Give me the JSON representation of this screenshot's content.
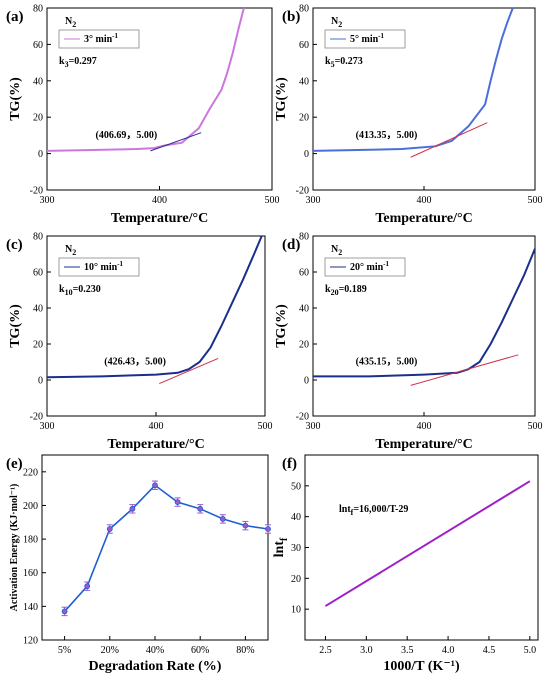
{
  "chart_data": [
    {
      "type": "line",
      "panel_label": "(a)",
      "atmosphere": "N",
      "atmosphere_sub": "2",
      "legend": "3° min",
      "legend_sup": "-1",
      "k_main": "k",
      "k_sub": "3",
      "k_value": "=0.297",
      "annotation": "(406.69，5.00)",
      "xlabel": "Temperature/°C",
      "ylabel": "TG(%)",
      "xlim": [
        300,
        500
      ],
      "ylim": [
        -20,
        80
      ],
      "xticks": [
        300,
        400,
        500
      ],
      "yticks": [
        -20,
        0,
        20,
        40,
        60,
        80
      ],
      "series_color": "#cc77dd",
      "tangent_color": "#2a2a9a",
      "x": [
        300,
        340,
        380,
        395,
        405,
        420,
        435,
        445,
        455,
        460,
        465,
        470,
        475
      ],
      "y": [
        1.5,
        2,
        2.5,
        3,
        4.5,
        6,
        14,
        25,
        35,
        44,
        55,
        68,
        80
      ],
      "tangent": {
        "x": [
          392,
          437
        ],
        "y": [
          1.5,
          11.5
        ]
      }
    },
    {
      "type": "line",
      "panel_label": "(b)",
      "atmosphere": "N",
      "atmosphere_sub": "2",
      "legend": "5° min",
      "legend_sup": "-1",
      "k_main": "k",
      "k_sub": "5",
      "k_value": "=0.273",
      "annotation": "(413.35，5.00)",
      "xlabel": "Temperature/°C",
      "ylabel": "TG(%)",
      "xlim": [
        300,
        500
      ],
      "ylim": [
        -20,
        80
      ],
      "xticks": [
        300,
        400,
        500
      ],
      "yticks": [
        -20,
        0,
        20,
        40,
        60,
        80
      ],
      "series_color": "#4a6fd8",
      "tangent_color": "#d0304a",
      "x": [
        300,
        340,
        380,
        410,
        425,
        440,
        455,
        460,
        465,
        470,
        475,
        480
      ],
      "y": [
        1.5,
        2,
        2.5,
        4,
        7,
        15,
        27,
        40,
        52,
        63,
        72,
        80
      ],
      "tangent": {
        "x": [
          388,
          457
        ],
        "y": [
          -2,
          17
        ]
      }
    },
    {
      "type": "line",
      "panel_label": "(c)",
      "atmosphere": "N",
      "atmosphere_sub": "2",
      "legend": "10° min",
      "legend_sup": "-1",
      "k_main": "k",
      "k_sub": "10",
      "k_value": "=0.230",
      "annotation": "(426.43，5.00)",
      "xlabel": "Temperature/°C",
      "ylabel": "TG(%)",
      "xlim": [
        300,
        500
      ],
      "ylim": [
        -20,
        80
      ],
      "xticks": [
        300,
        400,
        500
      ],
      "yticks": [
        -20,
        0,
        20,
        40,
        60,
        80
      ],
      "series_color": "#1a2f8c",
      "tangent_color": "#d0304a",
      "x": [
        300,
        350,
        400,
        420,
        430,
        440,
        450,
        460,
        470,
        480,
        490,
        497
      ],
      "y": [
        1.5,
        2,
        3,
        4,
        6,
        10,
        18,
        30,
        43,
        56,
        70,
        80
      ],
      "tangent": {
        "x": [
          403,
          457
        ],
        "y": [
          -2,
          12
        ]
      }
    },
    {
      "type": "line",
      "panel_label": "(d)",
      "atmosphere": "N",
      "atmosphere_sub": "2",
      "legend": "20° min",
      "legend_sup": "-1",
      "k_main": "k",
      "k_sub": "20",
      "k_value": "=0.189",
      "annotation": "(435.15，5.00)",
      "xlabel": "Temperature/°C",
      "ylabel": "TG(%)",
      "xlim": [
        300,
        500
      ],
      "ylim": [
        -20,
        80
      ],
      "xticks": [
        300,
        400,
        500
      ],
      "yticks": [
        -20,
        0,
        20,
        40,
        60,
        80
      ],
      "series_color": "#1a2f8c",
      "tangent_color": "#d0304a",
      "x": [
        300,
        350,
        400,
        430,
        440,
        450,
        460,
        470,
        480,
        490,
        500
      ],
      "y": [
        2,
        2,
        3,
        4,
        6,
        10,
        20,
        32,
        45,
        58,
        73
      ],
      "tangent": {
        "x": [
          388,
          485
        ],
        "y": [
          -3,
          14
        ]
      }
    },
    {
      "type": "line",
      "panel_label": "(e)",
      "xlabel": "Degradation Rate (%)",
      "ylabel": "Activation Energy (KJ·mol⁻¹)",
      "xlim": [
        0,
        10
      ],
      "ylim": [
        120,
        230
      ],
      "xticks": [
        1,
        3,
        5,
        7,
        9
      ],
      "xtick_labels": [
        "5%",
        "20%",
        "40%",
        "60%",
        "80%"
      ],
      "yticks": [
        120,
        140,
        160,
        180,
        200,
        220
      ],
      "series_color": "#1f5fd0",
      "marker_color": "#9b59d0",
      "x": [
        1,
        2,
        3,
        4,
        5,
        6,
        7,
        8,
        9,
        10
      ],
      "y": [
        137,
        152,
        186,
        198,
        212,
        202,
        198,
        192,
        188,
        186
      ],
      "error": 2.5
    },
    {
      "type": "line",
      "panel_label": "(f)",
      "equation_main": "lnt",
      "equation_sub": "f",
      "equation_rest": "=16,000/T-29",
      "xlabel": "1000/T (K⁻¹)",
      "ylabel_main": "lnt",
      "ylabel_sub": "f",
      "xlim": [
        2.25,
        5.1
      ],
      "ylim": [
        0,
        60
      ],
      "xticks": [
        2.5,
        3.0,
        3.5,
        4.0,
        4.5,
        5.0
      ],
      "xtick_labels": [
        "2.5",
        "3.0",
        "3.5",
        "4.0",
        "4.5",
        "5.0"
      ],
      "yticks": [
        10,
        20,
        30,
        40,
        50
      ],
      "series_color": "#a020c8",
      "x": [
        2.5,
        5.0
      ],
      "y": [
        11,
        51.5
      ]
    }
  ]
}
